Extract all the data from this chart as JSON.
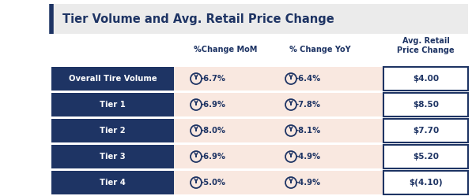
{
  "title": "Tier Volume and Avg. Retail Price Change",
  "col_headers": [
    "%Change MoM",
    "% Change YoY",
    "Avg. Retail\nPrice Change"
  ],
  "rows": [
    {
      "label": "Overall Tire Volume",
      "mom": "-6.7%",
      "yoy": "-6.4%",
      "avg": "$4.00"
    },
    {
      "label": "Tier 1",
      "mom": "-6.9%",
      "yoy": "-7.8%",
      "avg": "$8.50"
    },
    {
      "label": "Tier 2",
      "mom": "-8.0%",
      "yoy": "-8.1%",
      "avg": "$7.70"
    },
    {
      "label": "Tier 3",
      "mom": "-6.9%",
      "yoy": "-4.9%",
      "avg": "$5.20"
    },
    {
      "label": "Tier 4",
      "mom": "-5.0%",
      "yoy": "-4.9%",
      "avg": "$(4.10)"
    }
  ],
  "dark_blue": "#1E3464",
  "peach_bg": "#F9E8E0",
  "white_bg": "#FFFFFF",
  "title_bar_color": "#EBEBEB",
  "accent_line": "#1E3464",
  "text_dark": "#1E3464",
  "text_light": "#FFFFFF",
  "border_color": "#1E3464",
  "fig_bg": "#FFFFFF"
}
